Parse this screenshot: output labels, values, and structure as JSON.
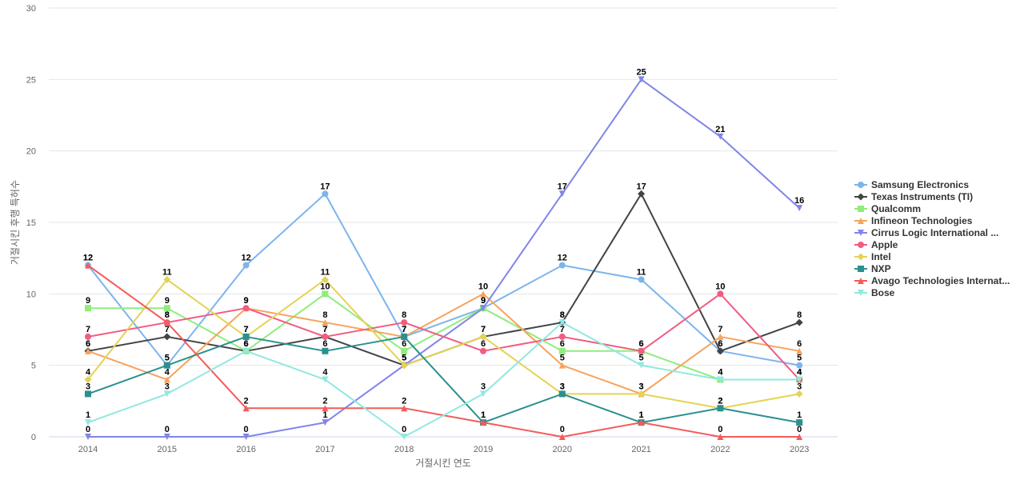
{
  "chart_data": {
    "type": "line",
    "xlabel": "거절시킨 연도",
    "ylabel": "거절시킨 후행 특허수",
    "ylim": [
      0,
      30
    ],
    "yticks": [
      0,
      5,
      10,
      15,
      20,
      25,
      30
    ],
    "categories": [
      "2014",
      "2015",
      "2016",
      "2017",
      "2018",
      "2019",
      "2020",
      "2021",
      "2022",
      "2023"
    ],
    "grid": true,
    "legend_position": "right",
    "series": [
      {
        "name": "Samsung Electronics",
        "color": "#7cb5ec",
        "marker": "circle",
        "values": [
          12,
          5,
          12,
          17,
          7,
          9,
          12,
          11,
          6,
          5
        ]
      },
      {
        "name": "Texas Instruments (TI)",
        "color": "#434348",
        "marker": "diamond",
        "values": [
          6,
          7,
          6,
          7,
          5,
          7,
          8,
          17,
          6,
          8
        ]
      },
      {
        "name": "Qualcomm",
        "color": "#90ed7d",
        "marker": "square",
        "values": [
          9,
          9,
          6,
          10,
          6,
          9,
          6,
          6,
          4,
          4
        ]
      },
      {
        "name": "Infineon Technologies",
        "color": "#f7a35c",
        "marker": "triangle",
        "values": [
          6,
          4,
          9,
          8,
          7,
          10,
          5,
          3,
          7,
          6
        ]
      },
      {
        "name": "Cirrus Logic International ...",
        "color": "#8085e9",
        "marker": "triangle-down",
        "values": [
          0,
          0,
          0,
          1,
          5,
          9,
          17,
          25,
          21,
          16
        ]
      },
      {
        "name": "Apple",
        "color": "#f15c80",
        "marker": "circle",
        "values": [
          7,
          8,
          9,
          7,
          8,
          6,
          7,
          6,
          10,
          4
        ]
      },
      {
        "name": "Intel",
        "color": "#e4d354",
        "marker": "diamond",
        "values": [
          4,
          11,
          7,
          11,
          5,
          7,
          3,
          3,
          2,
          3
        ]
      },
      {
        "name": "NXP",
        "color": "#2b908f",
        "marker": "square",
        "values": [
          3,
          5,
          7,
          6,
          7,
          1,
          3,
          1,
          2,
          1
        ]
      },
      {
        "name": "Avago Technologies Internat...",
        "color": "#f45b5b",
        "marker": "triangle",
        "values": [
          12,
          8,
          2,
          2,
          2,
          1,
          0,
          1,
          0,
          0
        ]
      },
      {
        "name": "Bose",
        "color": "#91e8e1",
        "marker": "triangle-down",
        "values": [
          1,
          3,
          6,
          4,
          0,
          3,
          8,
          5,
          4,
          4
        ]
      }
    ]
  }
}
